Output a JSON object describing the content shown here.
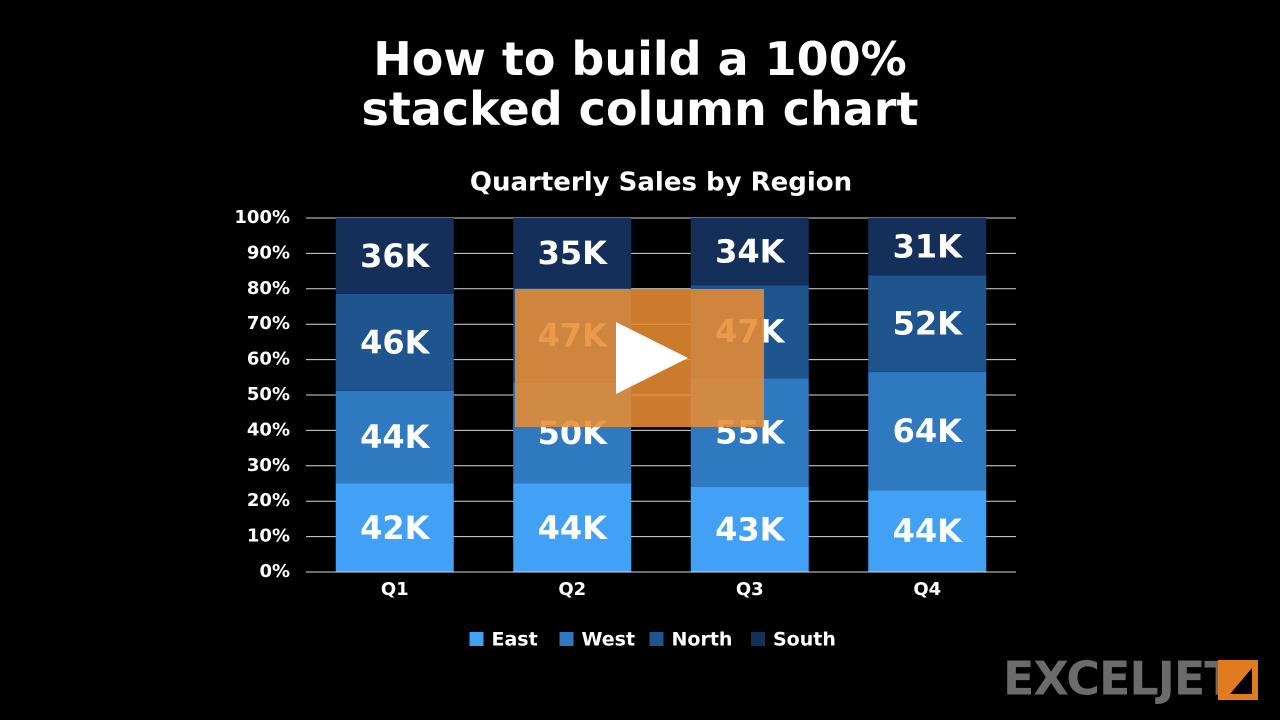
{
  "title": "How to build a 100% stacked column chart",
  "brand": "EXCELJET",
  "chart_data": {
    "type": "stacked_percent_bar",
    "title": "Quarterly Sales by Region",
    "categories": [
      "Q1",
      "Q2",
      "Q3",
      "Q4"
    ],
    "series": [
      {
        "name": "East",
        "color": "#42a1f4",
        "values": [
          42000,
          44000,
          43000,
          44000
        ],
        "value_labels": [
          "42K",
          "44K",
          "43K",
          "44K"
        ]
      },
      {
        "name": "West",
        "color": "#2e79c0",
        "values": [
          44000,
          50000,
          55000,
          64000
        ],
        "value_labels": [
          "44K",
          "50K",
          "55K",
          "64K"
        ]
      },
      {
        "name": "North",
        "color": "#1f558f",
        "values": [
          46000,
          47000,
          47000,
          52000
        ],
        "value_labels": [
          "46K",
          "47K",
          "47K",
          "52K"
        ]
      },
      {
        "name": "South",
        "color": "#142f5a",
        "values": [
          36000,
          35000,
          34000,
          31000
        ],
        "value_labels": [
          "36K",
          "35K",
          "34K",
          "31K"
        ]
      }
    ],
    "ylim": [
      0,
      100
    ],
    "yticks": [
      {
        "value": 0,
        "label": "0%"
      },
      {
        "value": 10,
        "label": "10%"
      },
      {
        "value": 20,
        "label": "20%"
      },
      {
        "value": 30,
        "label": "30%"
      },
      {
        "value": 40,
        "label": "40%"
      },
      {
        "value": 50,
        "label": "50%"
      },
      {
        "value": 60,
        "label": "60%"
      },
      {
        "value": 70,
        "label": "70%"
      },
      {
        "value": 80,
        "label": "80%"
      },
      {
        "value": 90,
        "label": "90%"
      },
      {
        "value": 100,
        "label": "100%"
      }
    ],
    "grid": true,
    "legend": "bottom"
  }
}
